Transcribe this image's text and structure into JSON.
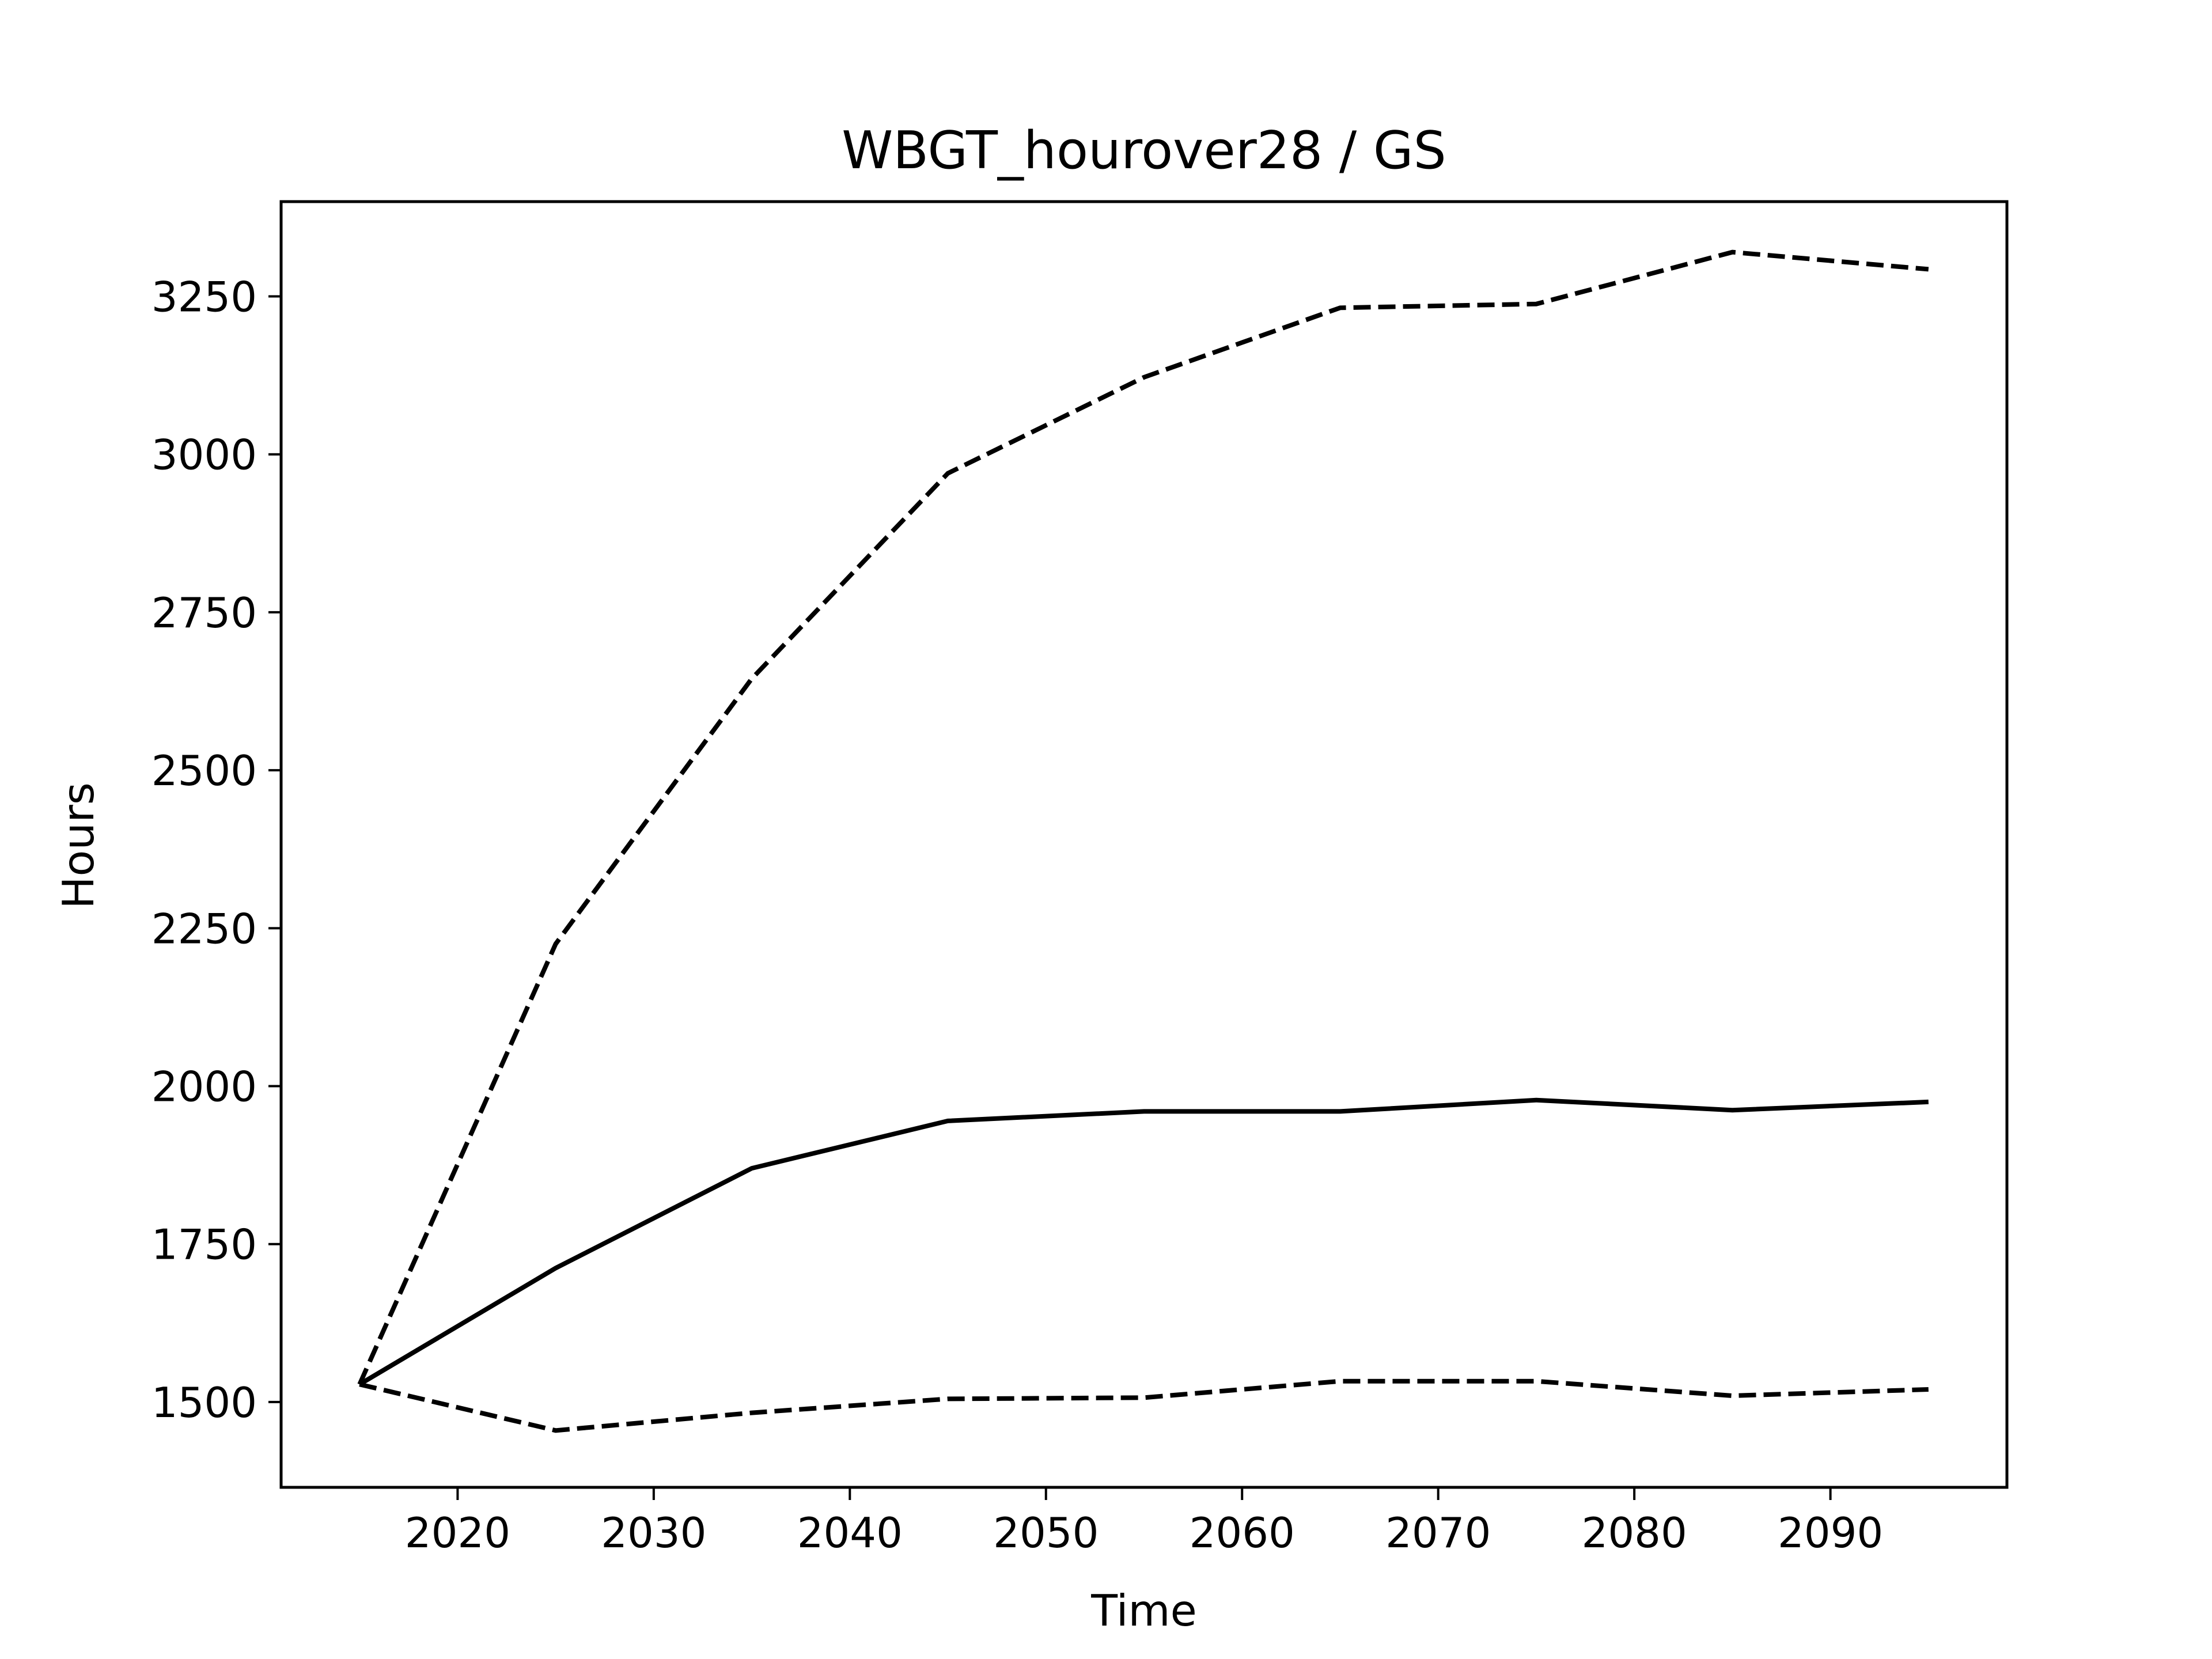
{
  "chart_data": {
    "type": "line",
    "title": "WBGT_hourover28 / GS",
    "xlabel": "Time",
    "ylabel": "Hours",
    "xlim": [
      2011,
      2099
    ],
    "ylim": [
      1365,
      3400
    ],
    "xticks": [
      2020,
      2030,
      2040,
      2050,
      2060,
      2070,
      2080,
      2090
    ],
    "yticks": [
      1500,
      1750,
      2000,
      2250,
      2500,
      2750,
      3000,
      3250
    ],
    "grid": false,
    "legend": "none",
    "x": [
      2015,
      2025,
      2035,
      2045,
      2055,
      2065,
      2075,
      2085,
      2095
    ],
    "series": [
      {
        "style": "dashed",
        "color": "#000000",
        "values": [
          1528,
          2225,
          2645,
          2970,
          3122,
          3232,
          3238,
          3320,
          3293
        ]
      },
      {
        "style": "solid",
        "color": "#000000",
        "values": [
          1528,
          1712,
          1870,
          1945,
          1960,
          1960,
          1978,
          1962,
          1975
        ]
      },
      {
        "style": "dashed",
        "color": "#000000",
        "values": [
          1528,
          1455,
          1483,
          1505,
          1507,
          1533,
          1533,
          1510,
          1520
        ]
      }
    ]
  }
}
